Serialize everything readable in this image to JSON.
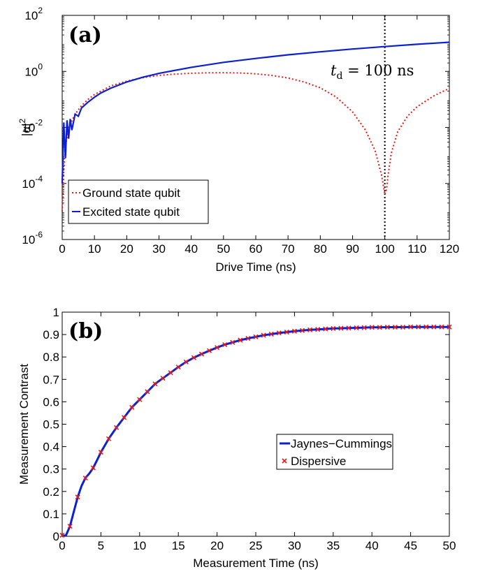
{
  "chart_data": [
    {
      "type": "line",
      "panel_label": "(a)",
      "xlabel": "Drive Time (ns)",
      "ylabel": "|α|²",
      "ylabel_base": "|α|",
      "ylabel_sup": "2",
      "yscale": "log",
      "xlim": [
        0,
        120
      ],
      "ylim": [
        1e-06,
        100
      ],
      "xticks": [
        0,
        10,
        20,
        30,
        40,
        50,
        60,
        70,
        80,
        90,
        100,
        110,
        120
      ],
      "xtick_labels": [
        "0",
        "10",
        "20",
        "30",
        "40",
        "50",
        "60",
        "70",
        "80",
        "90",
        "100",
        "110",
        "120"
      ],
      "yticks": [
        {
          "base": "10",
          "exp": "-6",
          "value": 1e-06
        },
        {
          "base": "10",
          "exp": "-4",
          "value": 0.0001
        },
        {
          "base": "10",
          "exp": "-2",
          "value": 0.01
        },
        {
          "base": "10",
          "exp": "0",
          "value": 1
        },
        {
          "base": "10",
          "exp": "2",
          "value": 100
        }
      ],
      "annotation": {
        "symbol": "t",
        "subscript": "d",
        "rest": " = 100 ns",
        "x": 100
      },
      "legend_location": "lower-left",
      "series": [
        {
          "name": "Ground state qubit",
          "color": "#e41a1c",
          "style": "dotted",
          "x": [
            0,
            0.5,
            1,
            2,
            4,
            6,
            8,
            10,
            15,
            20,
            25,
            30,
            35,
            40,
            45,
            50,
            55,
            60,
            65,
            70,
            75,
            80,
            85,
            90,
            94,
            97,
            99,
            100,
            100.5,
            101,
            102,
            104,
            107,
            110,
            115,
            120
          ],
          "y": [
            1e-05,
            0.0003,
            0.002,
            0.01,
            0.03,
            0.06,
            0.1,
            0.15,
            0.3,
            0.45,
            0.6,
            0.72,
            0.8,
            0.86,
            0.89,
            0.9,
            0.88,
            0.82,
            0.72,
            0.58,
            0.42,
            0.26,
            0.12,
            0.036,
            0.008,
            0.0015,
            0.0002,
            4e-05,
            6e-05,
            0.0002,
            0.0012,
            0.007,
            0.025,
            0.055,
            0.13,
            0.25
          ]
        },
        {
          "name": "Excited state qubit",
          "color": "#0a1fd8",
          "style": "solid",
          "x": [
            0,
            0.5,
            1,
            1.5,
            2,
            2.5,
            3,
            4,
            5,
            6,
            8,
            10,
            12,
            15,
            20,
            25,
            30,
            40,
            50,
            60,
            70,
            80,
            90,
            100,
            110,
            120
          ],
          "y": [
            0.0001,
            0.015,
            0.0008,
            0.018,
            0.004,
            0.02,
            0.008,
            0.03,
            0.025,
            0.05,
            0.08,
            0.12,
            0.17,
            0.25,
            0.42,
            0.62,
            0.85,
            1.4,
            2.1,
            2.9,
            3.9,
            5.0,
            6.3,
            7.7,
            9.3,
            11.0
          ]
        }
      ]
    },
    {
      "type": "line",
      "panel_label": "(b)",
      "xlabel": "Measurement Time (ns)",
      "ylabel": "Measurement Contrast",
      "xlim": [
        0,
        50
      ],
      "ylim": [
        0,
        1
      ],
      "xticks": [
        0,
        5,
        10,
        15,
        20,
        25,
        30,
        35,
        40,
        45,
        50
      ],
      "xtick_labels": [
        "0",
        "5",
        "10",
        "15",
        "20",
        "25",
        "30",
        "35",
        "40",
        "45",
        "50"
      ],
      "yticks": [
        0,
        0.1,
        0.2,
        0.3,
        0.4,
        0.5,
        0.6,
        0.7,
        0.8,
        0.9,
        1
      ],
      "ytick_labels": [
        "0",
        "0.1",
        "0.2",
        "0.3",
        "0.4",
        "0.5",
        "0.6",
        "0.7",
        "0.8",
        "0.9",
        "1"
      ],
      "legend_location": "center-right",
      "series": [
        {
          "name": "Jaynes−Cummings",
          "color": "#0a1fd8",
          "style": "solid",
          "x": [
            0,
            0.5,
            1,
            1.5,
            2,
            2.5,
            3,
            3.5,
            4,
            4.5,
            5,
            6,
            7,
            8,
            9,
            10,
            11,
            12,
            13,
            14,
            15,
            16,
            17,
            18,
            19,
            20,
            21,
            22,
            23,
            24,
            25,
            26,
            27,
            28,
            29,
            30,
            31,
            32,
            33,
            34,
            35,
            36,
            37,
            38,
            39,
            40,
            41,
            42,
            43,
            44,
            45,
            46,
            47,
            48,
            49,
            50
          ],
          "y": [
            0,
            0.005,
            0.045,
            0.11,
            0.175,
            0.225,
            0.26,
            0.28,
            0.305,
            0.34,
            0.375,
            0.435,
            0.485,
            0.53,
            0.575,
            0.61,
            0.645,
            0.68,
            0.705,
            0.73,
            0.755,
            0.778,
            0.797,
            0.813,
            0.828,
            0.842,
            0.855,
            0.865,
            0.875,
            0.883,
            0.89,
            0.897,
            0.902,
            0.907,
            0.911,
            0.915,
            0.918,
            0.921,
            0.923,
            0.925,
            0.927,
            0.928,
            0.929,
            0.93,
            0.931,
            0.932,
            0.932,
            0.933,
            0.933,
            0.933,
            0.934,
            0.934,
            0.934,
            0.934,
            0.934,
            0.934
          ]
        },
        {
          "name": "Dispersive",
          "color": "#e41a1c",
          "style": "x-markers",
          "x": [
            0,
            1,
            2,
            3,
            4,
            5,
            6,
            7,
            8,
            9,
            10,
            11,
            12,
            13,
            14,
            15,
            16,
            17,
            18,
            19,
            20,
            21,
            22,
            23,
            24,
            25,
            26,
            27,
            28,
            29,
            30,
            31,
            32,
            33,
            34,
            35,
            36,
            37,
            38,
            39,
            40,
            41,
            42,
            43,
            44,
            45,
            46,
            47,
            48,
            49,
            50
          ],
          "y": [
            0.005,
            0.045,
            0.175,
            0.26,
            0.305,
            0.375,
            0.435,
            0.485,
            0.53,
            0.575,
            0.61,
            0.645,
            0.68,
            0.705,
            0.73,
            0.755,
            0.778,
            0.797,
            0.813,
            0.828,
            0.842,
            0.855,
            0.865,
            0.875,
            0.883,
            0.89,
            0.897,
            0.902,
            0.907,
            0.911,
            0.915,
            0.918,
            0.921,
            0.923,
            0.925,
            0.927,
            0.928,
            0.929,
            0.93,
            0.931,
            0.932,
            0.932,
            0.933,
            0.933,
            0.933,
            0.934,
            0.934,
            0.934,
            0.934,
            0.934,
            0.934
          ]
        }
      ]
    }
  ]
}
